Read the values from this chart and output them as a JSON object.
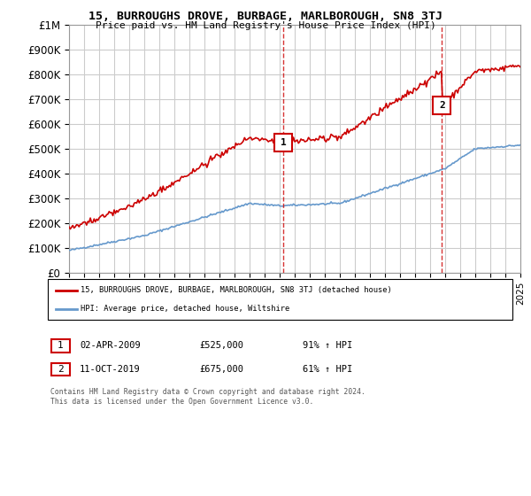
{
  "title": "15, BURROUGHS DROVE, BURBAGE, MARLBOROUGH, SN8 3TJ",
  "subtitle": "Price paid vs. HM Land Registry's House Price Index (HPI)",
  "ylim": [
    0,
    1000000
  ],
  "yticks": [
    0,
    100000,
    200000,
    300000,
    400000,
    500000,
    600000,
    700000,
    800000,
    900000,
    1000000
  ],
  "ytick_labels": [
    "£0",
    "£100K",
    "£200K",
    "£300K",
    "£400K",
    "£500K",
    "£600K",
    "£700K",
    "£800K",
    "£900K",
    "£1M"
  ],
  "x_start_year": 1995,
  "x_end_year": 2025,
  "sale1_date": 2009.25,
  "sale1_price": 525000,
  "sale1_label": "1",
  "sale2_date": 2019.79,
  "sale2_price": 675000,
  "sale2_label": "2",
  "legend_line1": "15, BURROUGHS DROVE, BURBAGE, MARLBOROUGH, SN8 3TJ (detached house)",
  "legend_line2": "HPI: Average price, detached house, Wiltshire",
  "footer": "Contains HM Land Registry data © Crown copyright and database right 2024.\nThis data is licensed under the Open Government Licence v3.0.",
  "red_line_color": "#cc0000",
  "blue_line_color": "#6699cc",
  "background_color": "#ffffff",
  "grid_color": "#cccccc"
}
